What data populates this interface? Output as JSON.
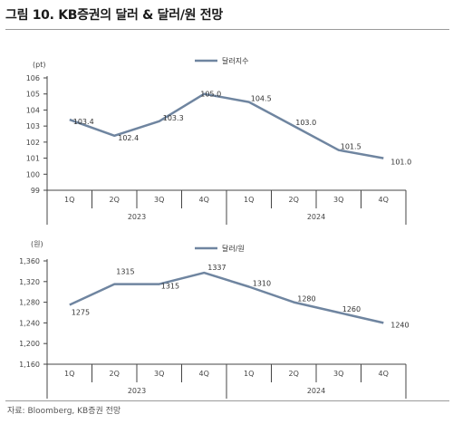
{
  "header": {
    "title": "그림 10. KB증권의 달러 & 달러/원 전망"
  },
  "footer": {
    "source": "자료: Bloomberg, KB증권 전망"
  },
  "colors": {
    "line": "#6f85a0",
    "axis": "#444444",
    "divider": "#555555"
  },
  "chart_data": [
    {
      "type": "line",
      "unit": "(pt)",
      "categories": [
        "1Q",
        "2Q",
        "3Q",
        "4Q",
        "1Q",
        "2Q",
        "3Q",
        "4Q"
      ],
      "years": [
        "2023",
        "2024"
      ],
      "series": [
        {
          "name": "달러지수",
          "values": [
            103.4,
            102.4,
            103.3,
            105.0,
            104.5,
            103.0,
            101.5,
            101.0
          ]
        }
      ],
      "data_labels": [
        "103.4",
        "102.4",
        "103.3",
        "105.0",
        "104.5",
        "103.0",
        "101.5",
        "101.0"
      ],
      "ylim": [
        99,
        106
      ],
      "yticks": [
        99,
        100,
        101,
        102,
        103,
        104,
        105,
        106
      ],
      "ytick_labels": [
        "99",
        "100",
        "101",
        "102",
        "103",
        "104",
        "105",
        "106"
      ],
      "legend": "top-center",
      "grid": false
    },
    {
      "type": "line",
      "unit": "(원)",
      "categories": [
        "1Q",
        "2Q",
        "3Q",
        "4Q",
        "1Q",
        "2Q",
        "3Q",
        "4Q"
      ],
      "years": [
        "2023",
        "2024"
      ],
      "series": [
        {
          "name": "달러/원",
          "values": [
            1275,
            1315,
            1315,
            1337,
            1310,
            1280,
            1260,
            1240
          ]
        }
      ],
      "data_labels": [
        "1275",
        "1315",
        "1315",
        "1337",
        "1310",
        "1280",
        "1260",
        "1240"
      ],
      "ylim": [
        1160,
        1360
      ],
      "yticks": [
        1160,
        1200,
        1240,
        1280,
        1320,
        1360
      ],
      "ytick_labels": [
        "1,160",
        "1,200",
        "1,240",
        "1,280",
        "1,320",
        "1,360"
      ],
      "legend": "top-center",
      "grid": false
    }
  ]
}
